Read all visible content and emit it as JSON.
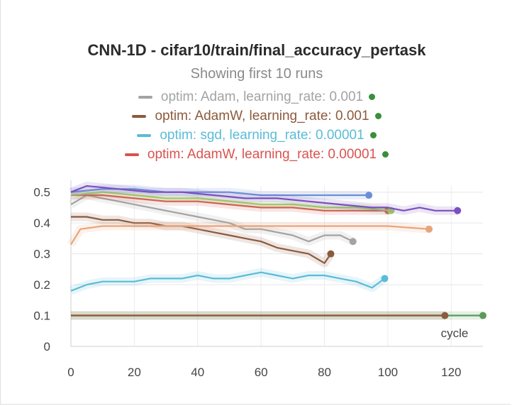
{
  "chart_data": {
    "type": "line",
    "title": "CNN-1D - cifar10/train/final_accuracy_pertask",
    "subtitle": "Showing first 10 runs",
    "xlabel": "cycle",
    "ylabel": "",
    "xlim": [
      0,
      130
    ],
    "ylim": [
      0,
      0.52
    ],
    "x_ticks": [
      0,
      20,
      40,
      60,
      80,
      100,
      120
    ],
    "y_ticks": [
      0,
      0.1,
      0.2,
      0.3,
      0.4,
      0.5
    ],
    "grid": true,
    "legend_position": "top",
    "legend": [
      {
        "label": "optim: Adam, learning_rate: 0.001",
        "color": "#a3a3a3",
        "status_color": "#3a8f3a"
      },
      {
        "label": "optim: AdamW, learning_rate: 0.001",
        "color": "#8c5a3c",
        "status_color": "#3a8f3a"
      },
      {
        "label": "optim: sgd, learning_rate: 0.00001",
        "color": "#5bbcd6",
        "status_color": "#3a8f3a"
      },
      {
        "label": "optim: AdamW, learning_rate: 0.00001",
        "color": "#d9534f",
        "status_color": "#3a8f3a"
      }
    ],
    "series": [
      {
        "color": "#a3a3a3",
        "x": [
          0,
          5,
          10,
          15,
          20,
          25,
          30,
          35,
          40,
          45,
          50,
          55,
          60,
          65,
          70,
          75,
          80,
          85,
          89
        ],
        "y": [
          0.46,
          0.49,
          0.48,
          0.47,
          0.46,
          0.45,
          0.44,
          0.43,
          0.42,
          0.41,
          0.4,
          0.38,
          0.38,
          0.37,
          0.36,
          0.34,
          0.36,
          0.36,
          0.34
        ]
      },
      {
        "color": "#8c5a3c",
        "x": [
          0,
          5,
          10,
          15,
          20,
          25,
          30,
          35,
          40,
          45,
          50,
          55,
          60,
          65,
          70,
          75,
          80,
          82
        ],
        "y": [
          0.42,
          0.42,
          0.41,
          0.41,
          0.4,
          0.4,
          0.39,
          0.39,
          0.38,
          0.37,
          0.36,
          0.35,
          0.34,
          0.32,
          0.31,
          0.3,
          0.27,
          0.3
        ]
      },
      {
        "color": "#5bbcd6",
        "x": [
          0,
          5,
          10,
          15,
          20,
          25,
          30,
          35,
          40,
          45,
          50,
          55,
          60,
          65,
          70,
          75,
          80,
          85,
          90,
          95,
          99
        ],
        "y": [
          0.18,
          0.2,
          0.21,
          0.21,
          0.21,
          0.22,
          0.22,
          0.22,
          0.23,
          0.22,
          0.22,
          0.23,
          0.24,
          0.23,
          0.22,
          0.23,
          0.23,
          0.22,
          0.21,
          0.19,
          0.22
        ]
      },
      {
        "color": "#d9534f",
        "x": [
          0,
          10,
          20,
          30,
          40,
          50,
          60,
          70,
          80,
          90,
          100
        ],
        "y": [
          0.49,
          0.49,
          0.48,
          0.47,
          0.47,
          0.46,
          0.45,
          0.45,
          0.44,
          0.44,
          0.44
        ]
      },
      {
        "color": "#9ccc65",
        "x": [
          0,
          10,
          20,
          30,
          40,
          50,
          60,
          70,
          80,
          90,
          101
        ],
        "y": [
          0.49,
          0.5,
          0.49,
          0.48,
          0.48,
          0.47,
          0.46,
          0.46,
          0.45,
          0.45,
          0.44
        ]
      },
      {
        "color": "#e8a47c",
        "x": [
          0,
          3,
          10,
          20,
          30,
          40,
          50,
          60,
          70,
          80,
          90,
          100,
          113
        ],
        "y": [
          0.33,
          0.38,
          0.39,
          0.39,
          0.39,
          0.39,
          0.39,
          0.39,
          0.39,
          0.39,
          0.39,
          0.39,
          0.38
        ]
      },
      {
        "color": "#6b8fd6",
        "x": [
          0,
          10,
          20,
          30,
          40,
          50,
          60,
          70,
          80,
          90,
          94
        ],
        "y": [
          0.5,
          0.51,
          0.51,
          0.5,
          0.5,
          0.5,
          0.49,
          0.49,
          0.49,
          0.49,
          0.49
        ]
      },
      {
        "color": "#7a4fbf",
        "x": [
          0,
          5,
          15,
          25,
          35,
          45,
          55,
          65,
          75,
          85,
          95,
          100,
          105,
          110,
          115,
          122
        ],
        "y": [
          0.5,
          0.52,
          0.51,
          0.5,
          0.5,
          0.49,
          0.48,
          0.48,
          0.47,
          0.46,
          0.45,
          0.45,
          0.44,
          0.45,
          0.44,
          0.44
        ]
      },
      {
        "color": "#5a9a5a",
        "x": [
          0,
          130
        ],
        "y": [
          0.1,
          0.1
        ]
      },
      {
        "color": "#8c5a3c",
        "x": [
          0,
          118
        ],
        "y": [
          0.1,
          0.1
        ]
      }
    ]
  }
}
